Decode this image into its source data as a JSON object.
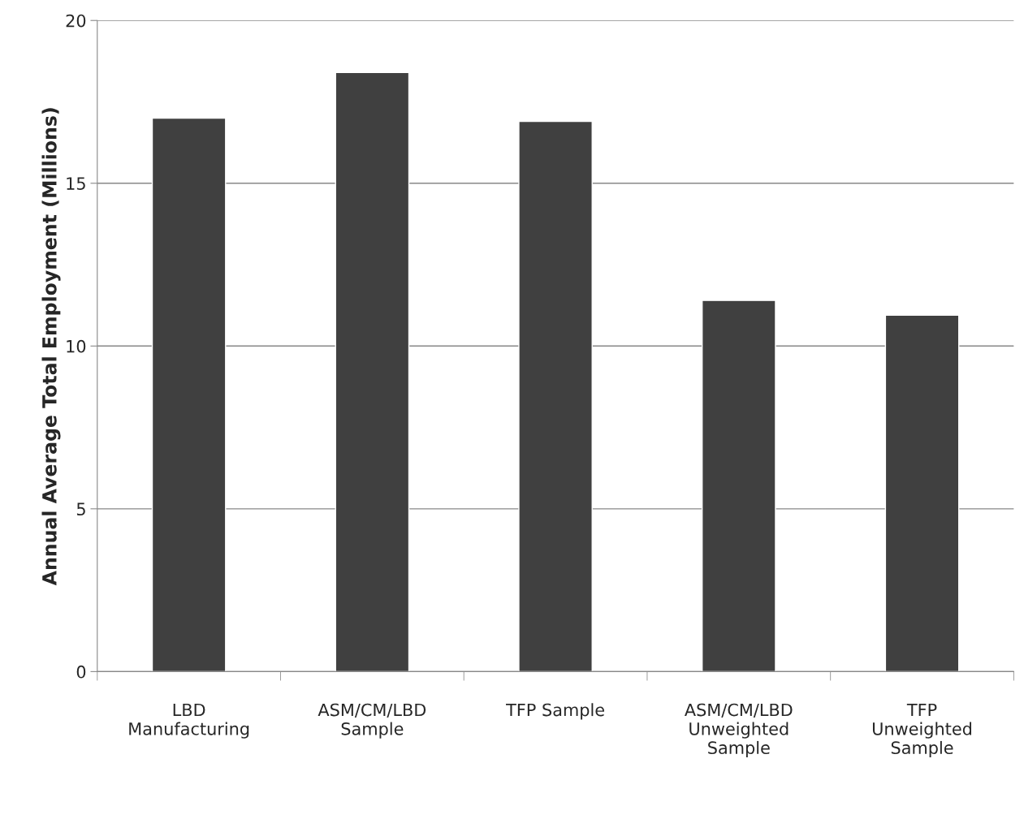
{
  "chart_data": {
    "type": "bar",
    "ylabel": "Annual Average Total Employment (Millions)",
    "categories": [
      "LBD\nManufacturing",
      "ASM/CM/LBD\nSample",
      "TFP Sample",
      "ASM/CM/LBD\nUnweighted\nSample",
      "TFP\nUnweighted\nSample"
    ],
    "values": [
      17.0,
      18.4,
      16.9,
      11.4,
      10.95
    ],
    "color": "#404040",
    "ylim": [
      0,
      20
    ],
    "yticks": [
      0,
      5,
      10,
      15,
      20
    ],
    "grid": "y"
  }
}
